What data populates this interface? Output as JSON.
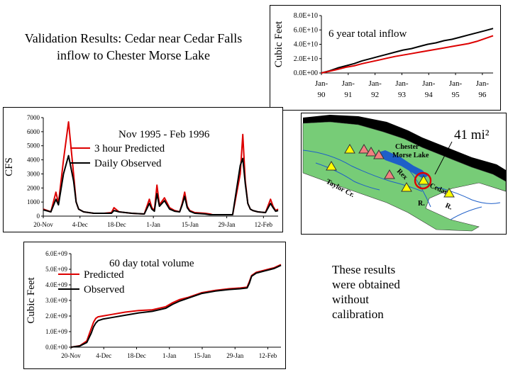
{
  "title": "Validation Results: Cedar near Cedar Falls inflow to Chester Morse Lake",
  "note": "These results\nwere obtained\nwithout\ncalibration",
  "colors": {
    "predicted": "#dd0000",
    "observed": "#000000",
    "map_land": "#77cc77",
    "map_water": "#1e5fc8",
    "triangle_red": "#f08080",
    "triangle_yellow": "#ffff00"
  },
  "charts": [
    {
      "type": "line",
      "annotation": "6 year total inflow",
      "ylabel": "Cubic Feet",
      "yticks": [
        "0.0E+00",
        "2.0E+10",
        "4.0E+10",
        "6.0E+10",
        "8.0E+10"
      ],
      "ylim": [
        0,
        80000000000
      ],
      "xticks": [
        "Jan-\n90",
        "Jan-\n91",
        "Jan-\n92",
        "Jan-\n93",
        "Jan-\n94",
        "Jan-\n95",
        "Jan-\n96"
      ],
      "x": [
        0,
        0.3,
        0.6,
        0.9,
        1.2,
        1.5,
        1.8,
        2.1,
        2.4,
        2.7,
        3.0,
        3.3,
        3.6,
        3.9,
        4.2,
        4.5,
        4.8,
        5.1,
        5.4,
        5.7,
        6.0,
        6.3
      ],
      "series": [
        {
          "name": "Observed",
          "color": "#000000",
          "values": [
            0,
            3000000000.0,
            7000000000.0,
            10000000000.0,
            13000000000.0,
            17000000000.0,
            20000000000.0,
            23000000000.0,
            26000000000.0,
            29000000000.0,
            32000000000.0,
            34000000000.0,
            37000000000.0,
            40000000000.0,
            42000000000.0,
            45000000000.0,
            47000000000.0,
            50000000000.0,
            53000000000.0,
            56000000000.0,
            59000000000.0,
            62000000000.0
          ]
        },
        {
          "name": "Predicted",
          "color": "#dd0000",
          "values": [
            0,
            2500000000.0,
            5000000000.0,
            8000000000.0,
            10000000000.0,
            13000000000.0,
            15500000000.0,
            18000000000.0,
            20500000000.0,
            23000000000.0,
            25000000000.0,
            27000000000.0,
            29000000000.0,
            31000000000.0,
            33000000000.0,
            35000000000.0,
            37000000000.0,
            39000000000.0,
            41000000000.0,
            44000000000.0,
            48000000000.0,
            52000000000.0
          ]
        }
      ]
    },
    {
      "type": "line",
      "annotation": "Nov 1995 - Feb 1996",
      "ylabel": "CFS",
      "yticks": [
        "0",
        "1000",
        "2000",
        "3000",
        "4000",
        "5000",
        "6000",
        "7000"
      ],
      "ylim": [
        0,
        7000
      ],
      "xticks": [
        "20-Nov",
        "4-Dec",
        "18-Dec",
        "1-Jan",
        "15-Jan",
        "29-Jan",
        "12-Feb"
      ],
      "x": [
        0,
        3,
        5,
        6,
        8,
        10,
        12,
        13,
        14,
        15,
        16,
        18,
        20,
        24,
        27,
        28,
        30,
        35,
        40,
        42,
        43,
        44,
        45,
        46,
        48,
        50,
        52,
        54,
        55,
        56,
        57,
        58,
        60,
        64,
        66,
        67,
        69,
        72,
        75,
        78,
        79,
        80,
        81,
        82,
        83,
        85,
        88,
        90,
        91,
        92,
        93
      ],
      "series": [
        {
          "name": "3 hour Predicted",
          "color": "#dd0000",
          "values": [
            500,
            300,
            1700,
            900,
            4000,
            6700,
            3000,
            1000,
            500,
            400,
            300,
            250,
            200,
            200,
            250,
            600,
            300,
            200,
            150,
            1200,
            600,
            400,
            2200,
            800,
            1300,
            600,
            400,
            300,
            900,
            1700,
            700,
            400,
            250,
            200,
            150,
            100,
            100,
            100,
            100,
            3000,
            5800,
            2500,
            900,
            500,
            400,
            300,
            250,
            1200,
            700,
            400,
            500
          ]
        },
        {
          "name": "Daily Observed",
          "color": "#000000",
          "values": [
            450,
            300,
            1200,
            800,
            3000,
            4300,
            2500,
            1000,
            500,
            400,
            300,
            250,
            200,
            200,
            200,
            400,
            300,
            200,
            150,
            900,
            500,
            350,
            1600,
            700,
            1100,
            500,
            350,
            300,
            800,
            1400,
            600,
            350,
            200,
            150,
            100,
            100,
            100,
            100,
            100,
            3600,
            4100,
            2300,
            900,
            500,
            400,
            300,
            250,
            900,
            600,
            350,
            400
          ]
        }
      ]
    },
    {
      "type": "line",
      "annotation": "60 day total volume",
      "ylabel": "Cubic Feet",
      "yticks": [
        "0.0E+00",
        "1.0E+09",
        "2.0E+09",
        "3.0E+09",
        "4.0E+09",
        "5.0E+09",
        "6.0E+09"
      ],
      "ylim": [
        0,
        6000000000
      ],
      "xticks": [
        "20-Nov",
        "4-Dec",
        "18-Dec",
        "1-Jan",
        "15-Jan",
        "29-Jan",
        "12-Feb"
      ],
      "x": [
        0,
        4,
        7,
        9,
        10,
        11,
        12,
        14,
        18,
        24,
        30,
        36,
        42,
        45,
        48,
        52,
        58,
        64,
        70,
        75,
        78,
        79,
        80,
        82,
        86,
        90,
        93
      ],
      "series": [
        {
          "name": "Predicted",
          "color": "#dd0000",
          "values": [
            0,
            100000000.0,
            400000000.0,
            1200000000.0,
            1600000000.0,
            1850000000.0,
            1950000000.0,
            2000000000.0,
            2100000000.0,
            2250000000.0,
            2350000000.0,
            2400000000.0,
            2600000000.0,
            2850000000.0,
            3050000000.0,
            3200000000.0,
            3500000000.0,
            3650000000.0,
            3750000000.0,
            3800000000.0,
            3850000000.0,
            4200000000.0,
            4600000000.0,
            4800000000.0,
            4950000000.0,
            5100000000.0,
            5300000000.0
          ]
        },
        {
          "name": "Observed",
          "color": "#000000",
          "values": [
            0,
            80000000.0,
            300000000.0,
            900000000.0,
            1300000000.0,
            1550000000.0,
            1700000000.0,
            1800000000.0,
            1900000000.0,
            2050000000.0,
            2200000000.0,
            2300000000.0,
            2500000000.0,
            2750000000.0,
            2950000000.0,
            3150000000.0,
            3450000000.0,
            3600000000.0,
            3700000000.0,
            3750000000.0,
            3800000000.0,
            4100000000.0,
            4550000000.0,
            4750000000.0,
            4900000000.0,
            5050000000.0,
            5250000000.0
          ]
        }
      ]
    }
  ],
  "map": {
    "labels": [
      "Chester",
      "Morse Lake",
      "Taylor Cr.",
      "Rex",
      "R.",
      "Cedar",
      "R."
    ],
    "area_label": "41 mi²"
  }
}
